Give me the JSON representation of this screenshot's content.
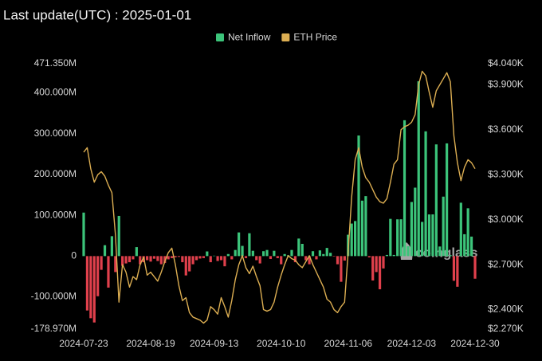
{
  "chart_data": {
    "type": "combo",
    "title": "Last update(UTC) : 2025-01-01",
    "watermark": "coinglass",
    "categories": [
      "2024-07-23",
      null,
      null,
      null,
      null,
      null,
      null,
      null,
      null,
      null,
      null,
      null,
      null,
      null,
      null,
      null,
      null,
      null,
      null,
      "2024-08-19",
      null,
      null,
      null,
      null,
      null,
      null,
      null,
      null,
      null,
      null,
      null,
      null,
      null,
      null,
      null,
      null,
      null,
      "2024-09-13",
      null,
      null,
      null,
      null,
      null,
      null,
      null,
      null,
      null,
      null,
      null,
      null,
      null,
      null,
      null,
      null,
      null,
      null,
      "2024-10-10",
      null,
      null,
      null,
      null,
      null,
      null,
      null,
      null,
      null,
      null,
      null,
      null,
      null,
      null,
      null,
      null,
      null,
      null,
      "2024-11-06",
      null,
      null,
      null,
      null,
      null,
      null,
      null,
      null,
      null,
      null,
      null,
      null,
      null,
      null,
      null,
      null,
      null,
      "2024-12-03",
      null,
      null,
      null,
      null,
      null,
      null,
      null,
      null,
      null,
      null,
      null,
      null,
      null,
      null,
      null,
      null,
      null,
      "2024-12-30"
    ],
    "series": [
      {
        "name": "Net Inflow",
        "type": "bar",
        "color": "#3cc47a",
        "negative_color": "#e0404c",
        "values": [
          106.6,
          -133.3,
          -152.3,
          -162.7,
          -98.3,
          -33.7,
          26.7,
          -77.2,
          48.8,
          -39.1,
          98.4,
          -23.7,
          -18,
          -15,
          -8,
          22,
          -20,
          -15,
          -10,
          -13.5,
          -6.5,
          -12,
          -20,
          -17,
          -8,
          -5,
          -3,
          -2,
          -15,
          -47.4,
          -37.5,
          -20,
          -10,
          -6,
          -5,
          11.4,
          -15,
          1,
          -12,
          -10,
          -25,
          5,
          -8,
          15,
          58,
          25,
          -5,
          56,
          13,
          -10,
          -18,
          12,
          15,
          -7,
          13,
          -5,
          -20,
          5,
          2,
          15,
          -15,
          43,
          30,
          -10,
          -20,
          12,
          -8,
          14,
          5,
          20,
          8,
          -1.1,
          -20,
          -63,
          -10.9,
          52.3,
          79.7,
          85.9,
          295.5,
          135.9,
          146.9,
          -3.2,
          -59.8,
          -39.1,
          -81.3,
          -30.3,
          2.8,
          91.2,
          2.8,
          90.1,
          90.2,
          332.9,
          24.2,
          132.6,
          167.7,
          428.5,
          83.8,
          305.7,
          102.1,
          102.2,
          273.7,
          23.5,
          145.7,
          276.2,
          2.5,
          -60.5,
          -75.1,
          130.8,
          53.6,
          117.2,
          47.8,
          -55.4
        ]
      },
      {
        "name": "ETH Price",
        "type": "line",
        "axis": "y2",
        "color": "#dcae52",
        "values": [
          3450,
          3480,
          3340,
          3250,
          3300,
          3320,
          3290,
          3230,
          3180,
          2900,
          2450,
          2700,
          2650,
          2550,
          2620,
          2600,
          2700,
          2750,
          2630,
          2650,
          2620,
          2590,
          2650,
          2720,
          2780,
          2810,
          2700,
          2560,
          2460,
          2480,
          2380,
          2350,
          2340,
          2330,
          2310,
          2330,
          2420,
          2400,
          2370,
          2480,
          2420,
          2350,
          2460,
          2600,
          2700,
          2760,
          2680,
          2640,
          2690,
          2620,
          2560,
          2400,
          2390,
          2400,
          2450,
          2550,
          2630,
          2700,
          2760,
          2740,
          2730,
          2700,
          2680,
          2720,
          2760,
          2700,
          2650,
          2600,
          2550,
          2470,
          2450,
          2400,
          2380,
          2420,
          2450,
          2780,
          3150,
          3400,
          3480,
          3350,
          3280,
          3250,
          3200,
          3150,
          3120,
          3110,
          3140,
          3250,
          3370,
          3400,
          3600,
          3620,
          3630,
          3650,
          3700,
          3900,
          3990,
          3960,
          3850,
          3750,
          3860,
          3900,
          3940,
          3980,
          3920,
          3560,
          3380,
          3260,
          3350,
          3400,
          3380,
          3340
        ]
      }
    ],
    "ylim": [
      -178.97,
      471.35
    ],
    "yticks": [
      {
        "value": 471.35,
        "label": "471.350M"
      },
      {
        "value": 400,
        "label": "400.000M"
      },
      {
        "value": 300,
        "label": "300.000M"
      },
      {
        "value": 200,
        "label": "200.000M"
      },
      {
        "value": 100,
        "label": "100.000M"
      },
      0,
      {
        "value": -100,
        "label": "-100.000M"
      },
      {
        "value": -178.97,
        "label": "-178.970M"
      }
    ],
    "y2lim": [
      2270,
      4040
    ],
    "y2ticks": [
      {
        "value": 4040,
        "label": "$4.040K"
      },
      {
        "value": 3900,
        "label": "$3.900K"
      },
      {
        "value": 3600,
        "label": "$3.600K"
      },
      {
        "value": 3300,
        "label": "$3.300K"
      },
      {
        "value": 3000,
        "label": "$3.000K"
      },
      {
        "value": 2700,
        "label": "$2.700K"
      },
      {
        "value": 2400,
        "label": "$2.400K"
      },
      {
        "value": 2270,
        "label": "$2.270K"
      }
    ],
    "grid": false
  }
}
